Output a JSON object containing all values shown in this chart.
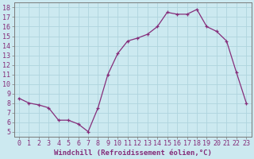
{
  "x": [
    0,
    1,
    2,
    3,
    4,
    5,
    6,
    7,
    8,
    9,
    10,
    11,
    12,
    13,
    14,
    15,
    16,
    17,
    18,
    19,
    20,
    21,
    22,
    23
  ],
  "y": [
    8.5,
    8.0,
    7.8,
    7.5,
    6.2,
    6.2,
    5.8,
    5.0,
    7.5,
    11.0,
    13.2,
    14.5,
    14.8,
    15.2,
    16.0,
    17.5,
    17.3,
    17.3,
    17.8,
    16.0,
    15.5,
    14.5,
    11.2,
    8.0
  ],
  "line_color": "#852d7a",
  "marker": "+",
  "bg_color": "#cce9f0",
  "grid_color": "#afd4de",
  "axis_line_color": "#7a7a7a",
  "xlabel": "Windchill (Refroidissement éolien,°C)",
  "ylabel_ticks": [
    5,
    6,
    7,
    8,
    9,
    10,
    11,
    12,
    13,
    14,
    15,
    16,
    17,
    18
  ],
  "xtick_labels": [
    "0",
    "1",
    "2",
    "3",
    "4",
    "5",
    "6",
    "7",
    "8",
    "9",
    "10",
    "11",
    "12",
    "13",
    "14",
    "15",
    "16",
    "17",
    "18",
    "19",
    "20",
    "21",
    "22",
    "23"
  ],
  "xlim": [
    -0.5,
    23.5
  ],
  "ylim": [
    4.5,
    18.5
  ],
  "xlabel_fontsize": 6.5,
  "tick_fontsize": 6,
  "label_color": "#852d7a"
}
